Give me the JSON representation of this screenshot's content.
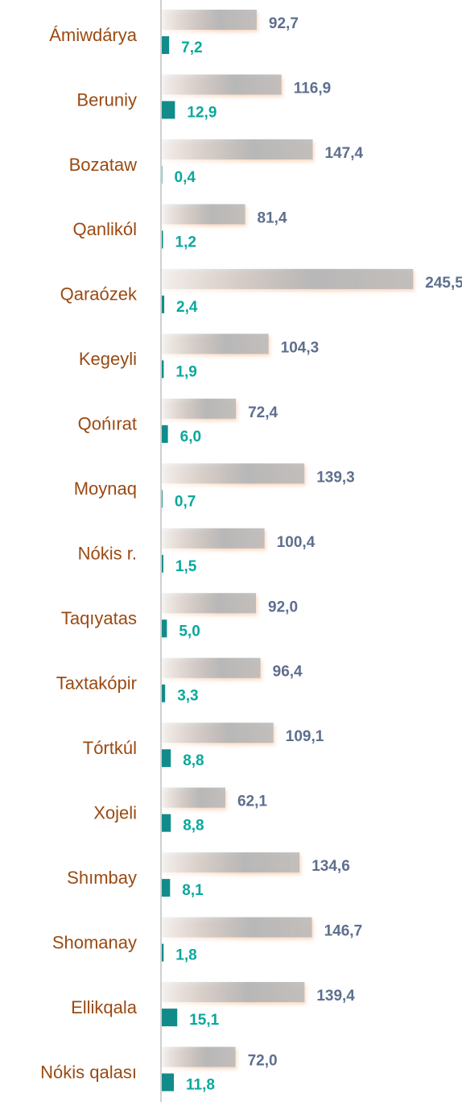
{
  "chart_data": {
    "type": "hbar",
    "categories": [
      "Ámiwdárya",
      "Beruniy",
      "Bozataw",
      "Qanlikól",
      "Qaraózek",
      "Kegeyli",
      "Qońırat",
      "Moynaq",
      "Nókis r.",
      "Taqıyatas",
      "Taxtakópir",
      "Tórtkúl",
      "Xojeli",
      "Shımbay",
      "Shomanay",
      "Ellikqala",
      "Nókis qalası"
    ],
    "series": [
      {
        "color": "#b8b8b8",
        "label_color": "#5e6f8e",
        "values": [
          92.7,
          116.9,
          147.4,
          81.4,
          245.5,
          104.3,
          72.4,
          139.3,
          100.4,
          92.0,
          96.4,
          109.1,
          62.1,
          134.6,
          146.7,
          139.4,
          72.0
        ],
        "value_labels": [
          "92,7",
          "116,9",
          "147,4",
          "81,4",
          "245,5",
          "104,3",
          "72,4",
          "139,3",
          "100,4",
          "92,0",
          "96,4",
          "109,1",
          "62,1",
          "134,6",
          "146,7",
          "139,4",
          "72,0"
        ]
      },
      {
        "color": "#128c8a",
        "label_color": "#0aa89c",
        "values": [
          7.2,
          12.9,
          0.4,
          1.2,
          2.4,
          1.9,
          6.0,
          0.7,
          1.5,
          5.0,
          3.3,
          8.8,
          8.8,
          8.1,
          1.8,
          15.1,
          11.8
        ],
        "value_labels": [
          "7,2",
          "12,9",
          "0,4",
          "1,2",
          "2,4",
          "1,9",
          "6,0",
          "0,7",
          "1,5",
          "5,0",
          "3,3",
          "8,8",
          "8,8",
          "8,1",
          "1,8",
          "15,1",
          "11,8"
        ]
      }
    ],
    "xlim": [
      0,
      294
    ]
  }
}
